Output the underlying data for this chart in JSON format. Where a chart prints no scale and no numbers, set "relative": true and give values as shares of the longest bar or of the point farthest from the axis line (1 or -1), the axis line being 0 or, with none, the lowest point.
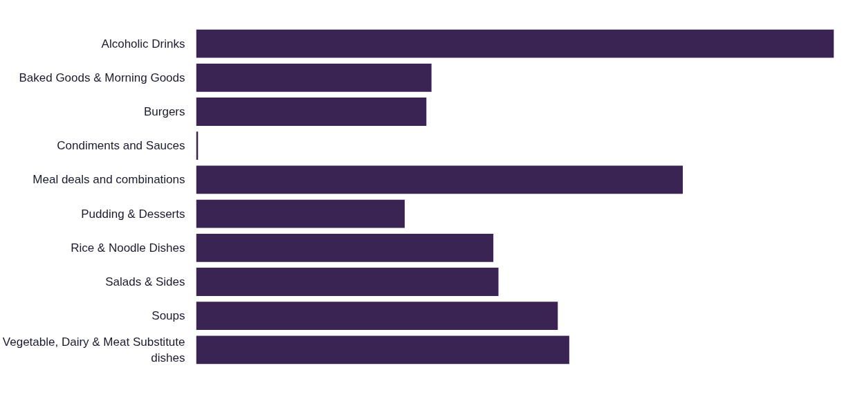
{
  "chart_data": {
    "type": "bar",
    "orientation": "horizontal",
    "relative": true,
    "color": "#392454",
    "categories": [
      "Alcoholic Drinks",
      "Baked Goods & Morning Goods",
      "Burgers",
      "Condiments and Sauces",
      "Meal deals and combinations",
      "Pudding & Desserts",
      "Rice & Noodle Dishes",
      "Salads & Sides",
      "Soups",
      "Vegetable, Dairy & Meat Substitute dishes"
    ],
    "values": [
      1,
      0.369,
      0.361,
      0.003,
      0.763,
      0.327,
      0.466,
      0.474,
      0.567,
      0.585
    ],
    "grid": false
  }
}
